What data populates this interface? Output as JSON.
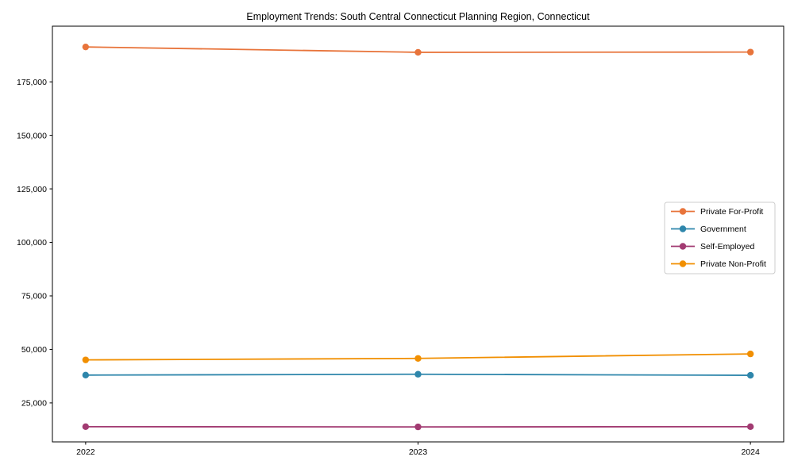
{
  "page": {
    "background": "#ffffff"
  },
  "chart_data": {
    "type": "line",
    "title": "Employment Trends: South Central Connecticut Planning Region, Connecticut",
    "x": [
      2022,
      2023,
      2024
    ],
    "xtick_labels": [
      "2022",
      "2023",
      "2024"
    ],
    "series": [
      {
        "name": "Private For-Profit",
        "color": "#E8743B",
        "values": [
          191300,
          188800,
          188900
        ]
      },
      {
        "name": "Government",
        "color": "#2E86AB",
        "values": [
          38000,
          38400,
          37900
        ]
      },
      {
        "name": "Self-Employed",
        "color": "#A23B72",
        "values": [
          13900,
          13800,
          13900
        ]
      },
      {
        "name": "Private Non-Profit",
        "color": "#F18F01",
        "values": [
          45100,
          45800,
          47900
        ]
      }
    ],
    "yticks": [
      25000,
      50000,
      75000,
      100000,
      125000,
      150000,
      175000
    ],
    "ytick_labels": [
      "25,000",
      "50,000",
      "75,000",
      "100,000",
      "125,000",
      "150,000",
      "175,000"
    ],
    "xlim": [
      2021.9,
      2024.1
    ],
    "ylim": [
      6800,
      201000
    ],
    "grid": false,
    "legend": {
      "position": "center right",
      "entries": [
        "Private For-Profit",
        "Government",
        "Self-Employed",
        "Private Non-Profit"
      ]
    },
    "axis_color": "#000000",
    "text_color": "#000000"
  }
}
